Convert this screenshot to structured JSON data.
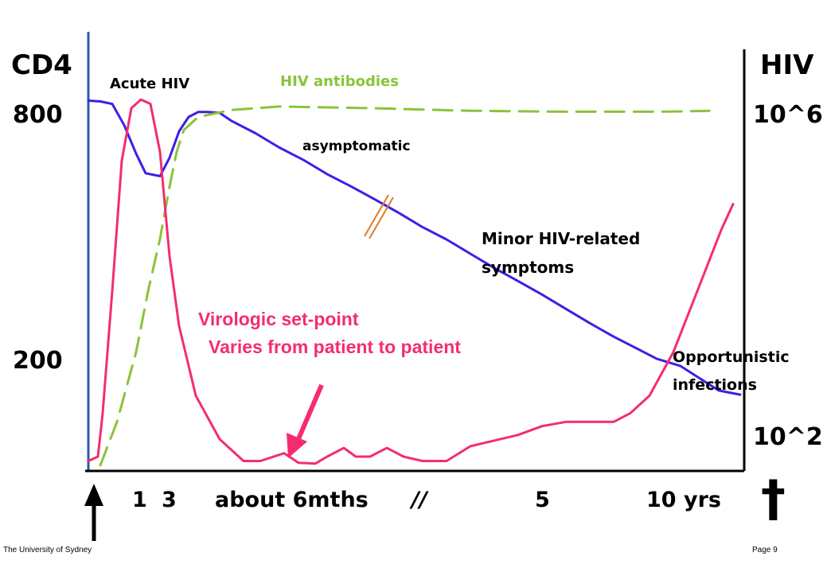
{
  "chart_data": {
    "type": "line",
    "title": "",
    "left_axis": {
      "label": "CD4",
      "ticks": [
        {
          "value": 800,
          "label": "800"
        },
        {
          "value": 200,
          "label": "200"
        }
      ]
    },
    "right_axis": {
      "label": "HIV",
      "ticks": [
        {
          "value": "10^6",
          "label": "10^6"
        },
        {
          "value": "10^2",
          "label": "10^2"
        }
      ]
    },
    "x_ticks": [
      "1",
      "3",
      "about 6mths",
      "//",
      "5",
      "10 yrs"
    ],
    "series": [
      {
        "name": "",
        "axis": "left",
        "color": "#3d1fe6",
        "points": [
          [
            0,
            840
          ],
          [
            0.05,
            838
          ],
          [
            0.1,
            832
          ],
          [
            0.15,
            780
          ],
          [
            0.2,
            710
          ],
          [
            0.24,
            662
          ],
          [
            0.3,
            655
          ],
          [
            0.34,
            700
          ],
          [
            0.38,
            765
          ],
          [
            0.42,
            800
          ],
          [
            0.46,
            812
          ],
          [
            0.5,
            812
          ],
          [
            0.55,
            810
          ],
          [
            0.6,
            790
          ],
          [
            0.7,
            760
          ],
          [
            0.8,
            725
          ],
          [
            0.9,
            695
          ],
          [
            1.0,
            660
          ],
          [
            1.1,
            630
          ],
          [
            1.2,
            598
          ],
          [
            1.3,
            565
          ],
          [
            1.4,
            530
          ],
          [
            1.5,
            500
          ],
          [
            1.6,
            465
          ],
          [
            1.7,
            430
          ],
          [
            1.8,
            398
          ],
          [
            1.9,
            365
          ],
          [
            2.0,
            330
          ],
          [
            2.1,
            295
          ],
          [
            2.2,
            262
          ],
          [
            2.3,
            232
          ],
          [
            2.38,
            208
          ],
          [
            2.48,
            190
          ],
          [
            2.56,
            160
          ],
          [
            2.64,
            130
          ],
          [
            2.73,
            120
          ]
        ]
      },
      {
        "name": "HIV antibodies",
        "axis": "right",
        "color": "#8ac33a",
        "points": [
          [
            0.05,
            0
          ],
          [
            0.12,
            0.5
          ],
          [
            0.2,
            1.3
          ],
          [
            0.25,
            2.0
          ],
          [
            0.3,
            2.6
          ],
          [
            0.34,
            3.2
          ],
          [
            0.37,
            3.6
          ],
          [
            0.4,
            3.85
          ],
          [
            0.46,
            4.0
          ],
          [
            0.6,
            4.08
          ],
          [
            0.8,
            4.12
          ],
          [
            1.2,
            4.1
          ],
          [
            1.6,
            4.07
          ],
          [
            2.0,
            4.06
          ],
          [
            2.4,
            4.06
          ],
          [
            2.6,
            4.07
          ]
        ]
      },
      {
        "name": "",
        "axis": "right",
        "color": "#f42d6e",
        "points": [
          [
            0,
            0.05
          ],
          [
            0.04,
            0.1
          ],
          [
            0.06,
            0.6
          ],
          [
            0.1,
            2.0
          ],
          [
            0.14,
            3.5
          ],
          [
            0.18,
            4.1
          ],
          [
            0.22,
            4.2
          ],
          [
            0.26,
            4.15
          ],
          [
            0.3,
            3.6
          ],
          [
            0.34,
            2.4
          ],
          [
            0.38,
            1.6
          ],
          [
            0.45,
            0.8
          ],
          [
            0.55,
            0.3
          ],
          [
            0.65,
            0.05
          ],
          [
            0.72,
            0.05
          ],
          [
            0.82,
            0.14
          ],
          [
            0.88,
            0.03
          ],
          [
            0.95,
            0.02
          ],
          [
            1.0,
            0.1
          ],
          [
            1.07,
            0.2
          ],
          [
            1.12,
            0.1
          ],
          [
            1.18,
            0.1
          ],
          [
            1.25,
            0.2
          ],
          [
            1.32,
            0.1
          ],
          [
            1.4,
            0.05
          ],
          [
            1.5,
            0.05
          ],
          [
            1.6,
            0.22
          ],
          [
            1.8,
            0.35
          ],
          [
            1.9,
            0.45
          ],
          [
            2.0,
            0.5
          ],
          [
            2.1,
            0.5
          ],
          [
            2.2,
            0.5
          ],
          [
            2.27,
            0.6
          ],
          [
            2.35,
            0.8
          ],
          [
            2.45,
            1.3
          ],
          [
            2.55,
            2.0
          ],
          [
            2.65,
            2.7
          ],
          [
            2.7,
            3.0
          ]
        ]
      }
    ],
    "annotations": [
      "Acute HIV",
      "HIV antibodies",
      "asymptomatic",
      "Minor HIV-related symptoms",
      "Virologic set-point",
      "Varies from patient to patient",
      "Opportunistic infections"
    ]
  },
  "labels": {
    "cd4": "CD4",
    "hiv": "HIV",
    "y800": "800",
    "y200": "200",
    "r_hi": "10^6",
    "r_lo": "10^2",
    "acute": "Acute HIV",
    "antibodies": "HIV antibodies",
    "asymptomatic": "asymptomatic",
    "minor1": "Minor HIV-related",
    "minor2": "symptoms",
    "setpoint1": "Virologic set-point",
    "setpoint2": "Varies from patient to patient",
    "opp1": "Opportunistic",
    "opp2": "infections",
    "x1": "1",
    "x3": "3",
    "x6": "about 6mths",
    "xbreak": "//",
    "x5": "5",
    "x10": "10 yrs",
    "dagger": "†",
    "footer_left": "The University of Sydney",
    "footer_right": "Page 9"
  },
  "colors": {
    "cd4": "#3d1fe6",
    "antibodies": "#8ac33a",
    "hiv": "#f42d6e",
    "left_axis": "#2f5aa8",
    "break_mark": "#e07b2a"
  }
}
